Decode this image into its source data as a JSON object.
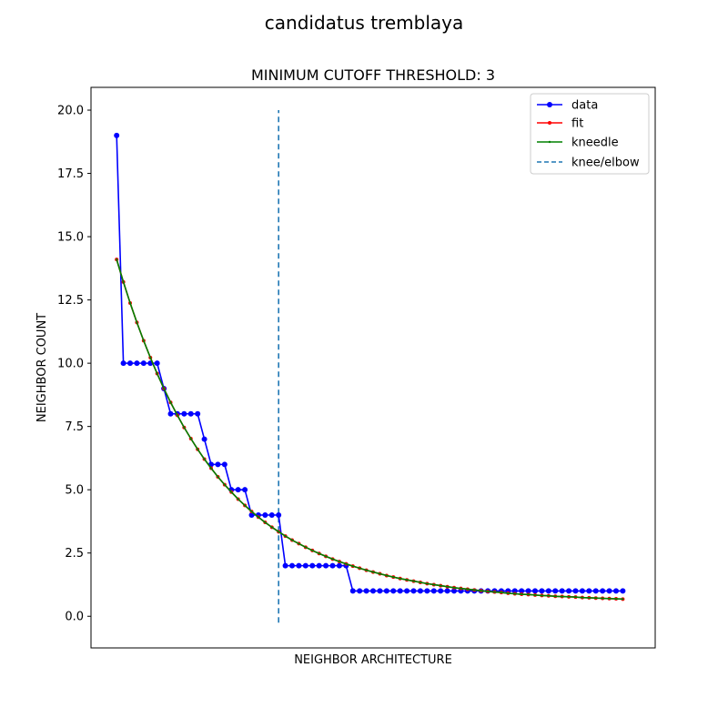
{
  "figure": {
    "suptitle": "candidatus tremblaya"
  },
  "chart_data": {
    "type": "line",
    "title": "MINIMUM CUTOFF THRESHOLD: 3",
    "xlabel": "NEIGHBOR ARCHITECTURE",
    "ylabel": "NEIGHBOR COUNT",
    "ylim": [
      -1.25,
      20.9
    ],
    "xlim": [
      -3.8,
      79.8
    ],
    "y_ticks": [
      "0.0",
      "2.5",
      "5.0",
      "7.5",
      "10.0",
      "12.5",
      "15.0",
      "17.5",
      "20.0"
    ],
    "x_ticks_visible": false,
    "grid": false,
    "legend_position": "upper right",
    "knee_x": 24,
    "knee_y_range": [
      -0.25,
      20.0
    ],
    "series": [
      {
        "name": "data",
        "color": "#0000ff",
        "marker": "circle",
        "values": [
          19,
          10,
          10,
          10,
          10,
          10,
          10,
          9,
          8,
          8,
          8,
          8,
          8,
          7,
          6,
          6,
          6,
          5,
          5,
          5,
          4,
          4,
          4,
          4,
          4,
          2,
          2,
          2,
          2,
          2,
          2,
          2,
          2,
          2,
          2,
          1,
          1,
          1,
          1,
          1,
          1,
          1,
          1,
          1,
          1,
          1,
          1,
          1,
          1,
          1,
          1,
          1,
          1,
          1,
          1,
          1,
          1,
          1,
          1,
          1,
          1,
          1,
          1,
          1,
          1,
          1,
          1,
          1,
          1,
          1,
          1,
          1,
          1,
          1,
          1,
          1
        ]
      },
      {
        "name": "fit",
        "color": "#ff0000",
        "marker": "small-circle",
        "values": [
          14.1,
          13.21,
          12.38,
          11.61,
          10.89,
          10.22,
          9.59,
          9.0,
          8.45,
          7.94,
          7.46,
          7.02,
          6.6,
          6.21,
          5.85,
          5.51,
          5.2,
          4.91,
          4.63,
          4.38,
          4.14,
          3.92,
          3.71,
          3.52,
          3.34,
          3.17,
          3.01,
          2.87,
          2.73,
          2.6,
          2.48,
          2.37,
          2.26,
          2.16,
          2.07,
          1.98,
          1.9,
          1.82,
          1.75,
          1.68,
          1.61,
          1.55,
          1.49,
          1.44,
          1.39,
          1.34,
          1.29,
          1.25,
          1.21,
          1.17,
          1.13,
          1.1,
          1.07,
          1.04,
          1.01,
          0.98,
          0.96,
          0.94,
          0.91,
          0.89,
          0.87,
          0.86,
          0.84,
          0.82,
          0.81,
          0.79,
          0.78,
          0.77,
          0.76,
          0.74,
          0.73,
          0.72,
          0.71,
          0.7,
          0.69,
          0.68
        ]
      },
      {
        "name": "kneedle",
        "color": "#008000",
        "marker": "tiny-dot",
        "values": [
          14.1,
          13.21,
          12.38,
          11.61,
          10.89,
          10.22,
          9.59,
          9.0,
          8.45,
          7.94,
          7.46,
          7.02,
          6.6,
          6.21,
          5.85,
          5.51,
          5.2,
          4.91,
          4.63,
          4.38,
          4.14,
          3.92,
          3.71,
          3.52,
          3.34,
          3.17,
          3.01,
          2.87,
          2.73,
          2.6,
          2.48,
          2.37,
          2.26,
          2.16,
          2.07,
          1.98,
          1.9,
          1.82,
          1.75,
          1.68,
          1.61,
          1.55,
          1.49,
          1.44,
          1.39,
          1.34,
          1.29,
          1.25,
          1.21,
          1.17,
          1.13,
          1.1,
          1.07,
          1.04,
          1.01,
          0.98,
          0.96,
          0.94,
          0.91,
          0.89,
          0.87,
          0.86,
          0.84,
          0.82,
          0.81,
          0.79,
          0.78,
          0.77,
          0.76,
          0.74,
          0.73,
          0.72,
          0.71,
          0.7,
          0.69,
          0.68
        ]
      }
    ],
    "knee_series": {
      "name": "knee/elbow",
      "color": "#1f77b4",
      "style": "dashed"
    }
  }
}
